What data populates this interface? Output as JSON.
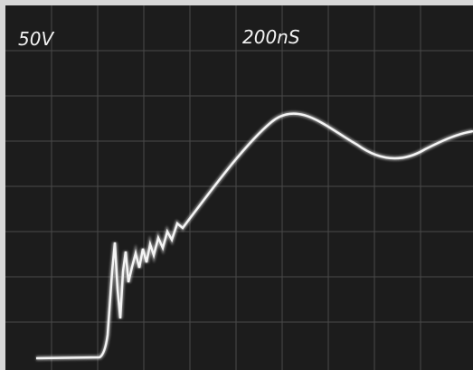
{
  "labels": {
    "volts_per_div": "50V",
    "time_per_div": "200nS"
  }
}
